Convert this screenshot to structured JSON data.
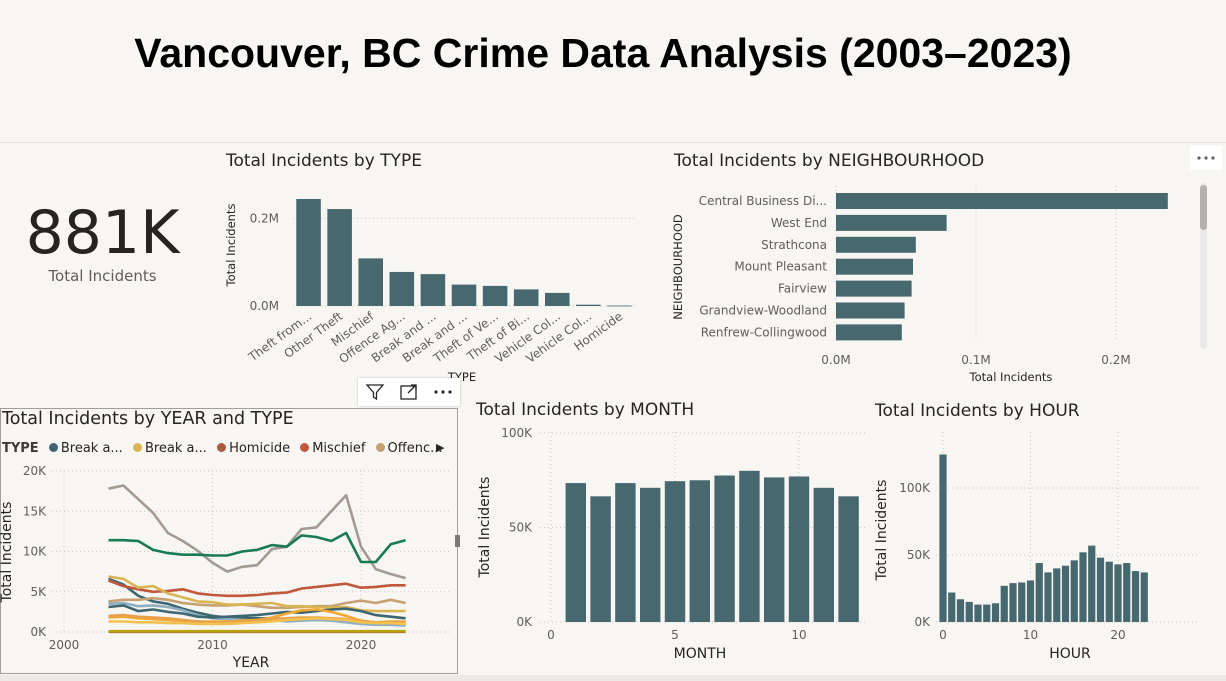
{
  "page": {
    "title": "Vancouver, BC Crime Data Analysis (2003–2023)"
  },
  "kpi": {
    "value": "881K",
    "label": "Total Incidents"
  },
  "colors": {
    "bar": "#46686e",
    "grid": "#c8c6c4",
    "axis_text": "#605e5c"
  },
  "type_chart": {
    "title": "Total Incidents by TYPE",
    "chart_data": {
      "type": "bar",
      "title": "Total Incidents by TYPE",
      "xlabel": "TYPE",
      "ylabel": "Total Incidents",
      "categories": [
        "Theft from...",
        "Other Theft",
        "Mischief",
        "Offence Ag...",
        "Break and ...",
        "Break and ...",
        "Theft of Ve...",
        "Theft of Bi...",
        "Vehicle Col...",
        "Vehicle Col...",
        "Homicide"
      ],
      "values": [
        245000,
        222000,
        109000,
        78000,
        73000,
        49000,
        46000,
        38000,
        30000,
        3000,
        1000
      ],
      "yticks": [
        "0.0M",
        "0.2M"
      ],
      "ylim": [
        0,
        300000
      ]
    }
  },
  "nbhd_chart": {
    "title": "Total Incidents by NEIGHBOURHOOD",
    "chart_data": {
      "type": "bar",
      "orientation": "horizontal",
      "title": "Total Incidents by NEIGHBOURHOOD",
      "xlabel": "Total Incidents",
      "ylabel": "NEIGHBOURHOOD",
      "categories": [
        "Central Business Di...",
        "West End",
        "Strathcona",
        "Mount Pleasant",
        "Fairview",
        "Grandview-Woodland",
        "Renfrew-Collingwood"
      ],
      "values": [
        237000,
        79000,
        57000,
        55000,
        54000,
        49000,
        47000
      ],
      "xticks": [
        "0.0M",
        "0.1M",
        "0.2M"
      ],
      "xlim": [
        0,
        250000
      ]
    }
  },
  "year_chart": {
    "title": "Total Incidents by YEAR and TYPE",
    "legend_title": "TYPE",
    "legend_items": [
      {
        "label": "Break a...",
        "color": "#3d6670"
      },
      {
        "label": "Break a...",
        "color": "#d9b453"
      },
      {
        "label": "Homicide",
        "color": "#a85c3d"
      },
      {
        "label": "Mischief",
        "color": "#c0583c"
      },
      {
        "label": "Offenc...",
        "color": "#c4a072"
      }
    ],
    "chart_data": {
      "type": "line",
      "title": "Total Incidents by YEAR and TYPE",
      "xlabel": "YEAR",
      "ylabel": "Total Incidents",
      "x": [
        2003,
        2004,
        2005,
        2006,
        2007,
        2008,
        2009,
        2010,
        2011,
        2012,
        2013,
        2014,
        2015,
        2016,
        2017,
        2018,
        2019,
        2020,
        2021,
        2022,
        2023
      ],
      "xticks": [
        "2000",
        "2010",
        "2020"
      ],
      "yticks": [
        "0K",
        "5K",
        "10K",
        "15K",
        "20K"
      ],
      "xlim": [
        1999,
        2027
      ],
      "ylim": [
        0,
        20000
      ],
      "series": [
        {
          "color": "#a49a93",
          "values": [
            17800,
            18200,
            16500,
            14800,
            12300,
            11300,
            10100,
            8600,
            7500,
            8100,
            8300,
            10300,
            10600,
            12800,
            13000,
            15000,
            17000,
            10600,
            7800,
            7200,
            6700
          ]
        },
        {
          "color": "#1a7a52",
          "values": [
            11400,
            11400,
            11300,
            10200,
            9800,
            9600,
            9600,
            9500,
            9500,
            10000,
            10200,
            10800,
            10600,
            12000,
            11800,
            11300,
            12300,
            8700,
            8700,
            10900,
            11400
          ]
        },
        {
          "color": "#3d6670",
          "values": [
            6600,
            5900,
            4500,
            3800,
            3500,
            2900,
            2400,
            2000,
            1800,
            1700,
            1700,
            1700,
            1600,
            1500,
            1500,
            1500,
            1500,
            1100,
            1000,
            1000,
            1000
          ]
        },
        {
          "color": "#c4a072",
          "values": [
            3800,
            4000,
            4000,
            4200,
            4000,
            3600,
            3400,
            3300,
            3300,
            3400,
            3200,
            3000,
            3000,
            3100,
            3200,
            3200,
            3600,
            3900,
            3600,
            4000,
            3600
          ]
        },
        {
          "color": "#c0583c",
          "values": [
            6400,
            5700,
            5300,
            5000,
            5100,
            5300,
            4800,
            4600,
            4500,
            4500,
            4600,
            4800,
            4900,
            5400,
            5600,
            5800,
            6000,
            5500,
            5600,
            5800,
            5800
          ]
        },
        {
          "color": "#d9b453",
          "values": [
            6900,
            6600,
            5500,
            5700,
            4800,
            4300,
            3800,
            3700,
            3400,
            3400,
            3500,
            3600,
            3200,
            3200,
            3100,
            3000,
            3100,
            2700,
            2600,
            2600,
            2600
          ]
        },
        {
          "color": "#8fb0c2",
          "values": [
            3500,
            3600,
            3200,
            3300,
            3100,
            2700,
            2100,
            1700,
            1600,
            1500,
            1400,
            1500,
            1300,
            1400,
            1500,
            1400,
            1200,
            1000,
            900,
            900,
            800
          ]
        },
        {
          "color": "#3d6670",
          "values": [
            3100,
            3300,
            2600,
            2800,
            2500,
            2300,
            1900,
            1800,
            1900,
            2000,
            2100,
            2300,
            2500,
            2400,
            2600,
            2800,
            2900,
            2600,
            2100,
            1900,
            1700
          ]
        },
        {
          "color": "#f0a830",
          "values": [
            1800,
            1900,
            1700,
            1600,
            1500,
            1400,
            1300,
            1300,
            1300,
            1400,
            1500,
            1800,
            2300,
            2700,
            2800,
            2500,
            2000,
            1400,
            1200,
            1300,
            1300
          ]
        },
        {
          "color": "#e8a04a",
          "values": [
            2000,
            2100,
            1900,
            1800,
            1700,
            1500,
            1300,
            1200,
            1200,
            1300,
            1400,
            1600,
            1700,
            1800,
            1800,
            1700,
            1600,
            1300,
            1200,
            1200,
            1200
          ]
        },
        {
          "color": "#f2c14e",
          "values": [
            1300,
            1300,
            1200,
            1200,
            1100,
            1100,
            1000,
            1000,
            1000,
            1100,
            1200,
            1300,
            1500,
            1600,
            1700,
            1600,
            1500,
            1200,
            1100,
            1100,
            1000
          ]
        },
        {
          "color": "#a85c3d",
          "values": [
            20,
            20,
            20,
            20,
            20,
            20,
            20,
            20,
            20,
            20,
            20,
            20,
            20,
            20,
            20,
            20,
            20,
            20,
            20,
            20,
            20
          ]
        },
        {
          "color": "#b8a40a",
          "values": [
            100,
            100,
            100,
            100,
            100,
            100,
            100,
            100,
            100,
            100,
            100,
            100,
            100,
            100,
            100,
            100,
            100,
            100,
            100,
            100,
            100
          ]
        }
      ]
    }
  },
  "month_chart": {
    "title": "Total Incidents by MONTH",
    "chart_data": {
      "type": "bar",
      "title": "Total Incidents by MONTH",
      "xlabel": "MONTH",
      "ylabel": "Total Incidents",
      "x": [
        1,
        2,
        3,
        4,
        5,
        6,
        7,
        8,
        9,
        10,
        11,
        12
      ],
      "values": [
        73500,
        66500,
        73500,
        71000,
        74500,
        75000,
        77500,
        80000,
        76500,
        77000,
        71000,
        66500
      ],
      "xticks": [
        0,
        5,
        10
      ],
      "yticks": [
        "0K",
        "50K",
        "100K"
      ],
      "ylim": [
        0,
        100000
      ]
    }
  },
  "hour_chart": {
    "title": "Total Incidents by HOUR",
    "chart_data": {
      "type": "bar",
      "title": "Total Incidents by HOUR",
      "xlabel": "HOUR",
      "ylabel": "Total Incidents",
      "x": [
        0,
        1,
        2,
        3,
        4,
        5,
        6,
        7,
        8,
        9,
        10,
        11,
        12,
        13,
        14,
        15,
        16,
        17,
        18,
        19,
        20,
        21,
        22,
        23
      ],
      "values": [
        125000,
        22000,
        17000,
        15000,
        13000,
        13000,
        14000,
        27000,
        29000,
        29500,
        31000,
        44000,
        37000,
        40000,
        42000,
        46000,
        52000,
        57000,
        48000,
        45000,
        43000,
        44000,
        38000,
        37000
      ],
      "xticks": [
        0,
        10,
        20
      ],
      "yticks": [
        "0K",
        "50K",
        "100K"
      ],
      "ylim": [
        0,
        140000
      ]
    }
  }
}
